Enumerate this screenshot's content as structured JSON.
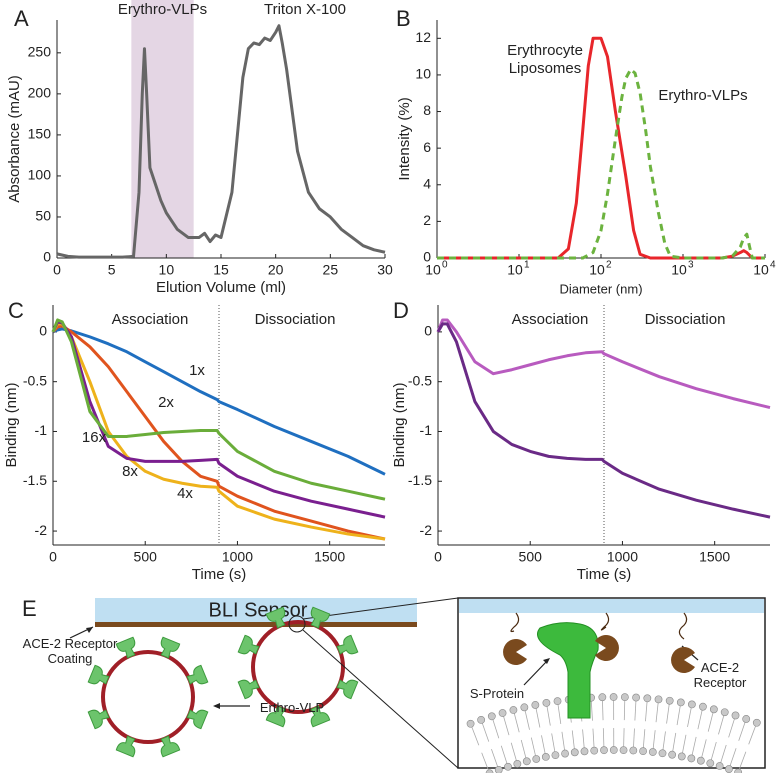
{
  "chart_data": [
    {
      "type": "line",
      "panel": "A",
      "x_label": "Elution Volume (ml)",
      "y_label": "Absorbance (mAU)",
      "xlim": [
        0,
        30
      ],
      "ylim": [
        0,
        290
      ],
      "xticks": [
        0,
        5,
        10,
        15,
        20,
        25,
        30
      ],
      "yticks": [
        0,
        50,
        100,
        150,
        200,
        250
      ],
      "shaded_region": {
        "xlim": [
          6.8,
          12.5
        ],
        "label": "Erythro-VLPs",
        "color": "#e4d6e4",
        "label_color": "#7b2a8c"
      },
      "annotations": [
        "Triton X-100"
      ],
      "x": [
        0,
        1,
        2,
        3,
        4,
        5,
        6,
        7,
        7.5,
        7.8,
        8,
        8.2,
        8.5,
        9,
        9.5,
        10,
        11,
        12,
        13,
        13.5,
        14,
        14.5,
        15,
        16,
        17,
        17.5,
        18,
        18.5,
        19,
        19.5,
        20,
        20.3,
        20.6,
        21,
        22,
        23,
        24,
        25,
        26,
        27,
        28,
        29,
        30
      ],
      "series": [
        {
          "color": "#666666",
          "values": [
            5,
            2,
            1,
            1,
            1,
            1,
            1,
            2,
            80,
            200,
            255,
            200,
            110,
            90,
            70,
            55,
            35,
            25,
            25,
            30,
            20,
            28,
            25,
            80,
            220,
            255,
            262,
            260,
            268,
            265,
            275,
            283,
            262,
            230,
            130,
            80,
            60,
            50,
            35,
            25,
            15,
            10,
            7
          ]
        }
      ]
    },
    {
      "type": "line",
      "panel": "B",
      "x_label": "Diameter (nm)",
      "y_label": "Intensity (%)",
      "xscale": "log",
      "xlim": [
        1,
        10000
      ],
      "ylim": [
        0,
        13
      ],
      "xticks": [
        {
          "value": 1,
          "label": "10",
          "exponent": "0"
        },
        {
          "value": 10,
          "label": "10",
          "exponent": "1"
        },
        {
          "value": 100,
          "label": "10",
          "exponent": "2"
        },
        {
          "value": 1000,
          "label": "10",
          "exponent": "3"
        },
        {
          "value": 10000,
          "label": "10",
          "exponent": "4"
        }
      ],
      "yticks": [
        0,
        2,
        4,
        6,
        8,
        10,
        12
      ],
      "series": [
        {
          "name": "Erythrocyte Liposomes",
          "color": "#e8262b",
          "dash": false,
          "x": [
            1,
            10,
            30,
            40,
            50,
            60,
            70,
            80,
            90,
            100,
            120,
            150,
            200,
            250,
            300,
            400,
            1000,
            3000,
            4000,
            5000,
            5500,
            6000,
            7000,
            10000
          ],
          "values": [
            0,
            0,
            0,
            0.5,
            3,
            7,
            10.5,
            12,
            12,
            12,
            11,
            8,
            4.5,
            1.5,
            0.2,
            0,
            0,
            0,
            0.1,
            0.3,
            0.4,
            0.3,
            0,
            0
          ]
        },
        {
          "name": "Erythro-VLPs",
          "color": "#6cb33f",
          "dash": true,
          "x": [
            1,
            10,
            60,
            80,
            100,
            120,
            150,
            180,
            200,
            230,
            260,
            300,
            350,
            400,
            500,
            600,
            700,
            1000,
            3000,
            4000,
            5000,
            5500,
            6000,
            6500,
            7000,
            10000
          ],
          "values": [
            0,
            0,
            0,
            0.3,
            1.5,
            3.5,
            6.5,
            8.8,
            9.8,
            10.3,
            10.1,
            9,
            7,
            5,
            2.5,
            0.8,
            0.1,
            0,
            0,
            0.1,
            0.6,
            1.1,
            1.3,
            0.6,
            0,
            0
          ]
        }
      ]
    },
    {
      "type": "line",
      "panel": "C",
      "x_label": "Time (s)",
      "y_label": "Binding (nm)",
      "xlim": [
        0,
        1800
      ],
      "ylim": [
        -2.14,
        0.27
      ],
      "xticks": [
        0,
        500,
        1000,
        1500
      ],
      "yticks": [
        0,
        -0.5,
        -1,
        -1.5,
        -2
      ],
      "divider_x": 900,
      "annotations": [
        "Association",
        "Dissociation"
      ],
      "x": [
        0,
        25,
        50,
        100,
        200,
        300,
        400,
        500,
        600,
        700,
        800,
        890,
        900,
        1000,
        1200,
        1400,
        1600,
        1800
      ],
      "series": [
        {
          "name": "1x",
          "color": "#1f6fc0",
          "values": [
            0,
            0.02,
            0.03,
            0.01,
            -0.05,
            -0.12,
            -0.2,
            -0.3,
            -0.4,
            -0.5,
            -0.6,
            -0.68,
            -0.7,
            -0.78,
            -0.95,
            -1.1,
            -1.25,
            -1.43
          ]
        },
        {
          "name": "2x",
          "color": "#e0541e",
          "values": [
            0,
            0.05,
            0.06,
            0,
            -0.15,
            -0.35,
            -0.6,
            -0.85,
            -1.1,
            -1.3,
            -1.45,
            -1.5,
            -1.55,
            -1.65,
            -1.8,
            -1.9,
            -2,
            -2.08
          ]
        },
        {
          "name": "4x",
          "color": "#eeb21b",
          "values": [
            0,
            0.08,
            0.08,
            -0.05,
            -0.5,
            -1,
            -1.25,
            -1.4,
            -1.48,
            -1.52,
            -1.55,
            -1.56,
            -1.6,
            -1.75,
            -1.88,
            -1.96,
            -2.03,
            -2.08
          ]
        },
        {
          "name": "8x",
          "color": "#7a1f8f",
          "values": [
            0,
            0.1,
            0.09,
            -0.05,
            -0.7,
            -1.15,
            -1.27,
            -1.3,
            -1.3,
            -1.3,
            -1.29,
            -1.28,
            -1.32,
            -1.45,
            -1.6,
            -1.7,
            -1.78,
            -1.86
          ]
        },
        {
          "name": "16x",
          "color": "#6aad3a",
          "values": [
            0,
            0.12,
            0.1,
            -0.1,
            -0.8,
            -1.05,
            -1.05,
            -1.03,
            -1.01,
            -1,
            -0.99,
            -0.99,
            -1.02,
            -1.2,
            -1.4,
            -1.52,
            -1.6,
            -1.68
          ]
        }
      ]
    },
    {
      "type": "line",
      "panel": "D",
      "x_label": "Time (s)",
      "y_label": "Binding (nm)",
      "xlim": [
        0,
        1800
      ],
      "ylim": [
        -2.14,
        0.27
      ],
      "xticks": [
        0,
        500,
        1000,
        1500
      ],
      "yticks": [
        0,
        -0.5,
        -1,
        -1.5,
        -2
      ],
      "divider_x": 900,
      "annotations": [
        "Association",
        "Dissociation"
      ],
      "x": [
        0,
        25,
        50,
        100,
        200,
        300,
        400,
        500,
        600,
        700,
        800,
        890,
        900,
        1000,
        1200,
        1400,
        1600,
        1800
      ],
      "series": [
        {
          "color": "#b85bbf",
          "values": [
            0,
            0.12,
            0.12,
            0,
            -0.3,
            -0.42,
            -0.38,
            -0.33,
            -0.28,
            -0.24,
            -0.21,
            -0.2,
            -0.22,
            -0.3,
            -0.45,
            -0.57,
            -0.67,
            -0.76
          ]
        },
        {
          "color": "#6a2a86",
          "values": [
            0,
            0.08,
            0.08,
            -0.1,
            -0.7,
            -1,
            -1.13,
            -1.2,
            -1.25,
            -1.27,
            -1.28,
            -1.28,
            -1.3,
            -1.42,
            -1.58,
            -1.69,
            -1.78,
            -1.86
          ]
        }
      ]
    }
  ],
  "diagram": {
    "panel": "E",
    "sensor": "BLI Sensor",
    "coating": "ACE-2 Receptor Coating",
    "vlp": "Erthro-VLP",
    "spike": "S-Protein",
    "receptor": "ACE-2 Receptor"
  }
}
